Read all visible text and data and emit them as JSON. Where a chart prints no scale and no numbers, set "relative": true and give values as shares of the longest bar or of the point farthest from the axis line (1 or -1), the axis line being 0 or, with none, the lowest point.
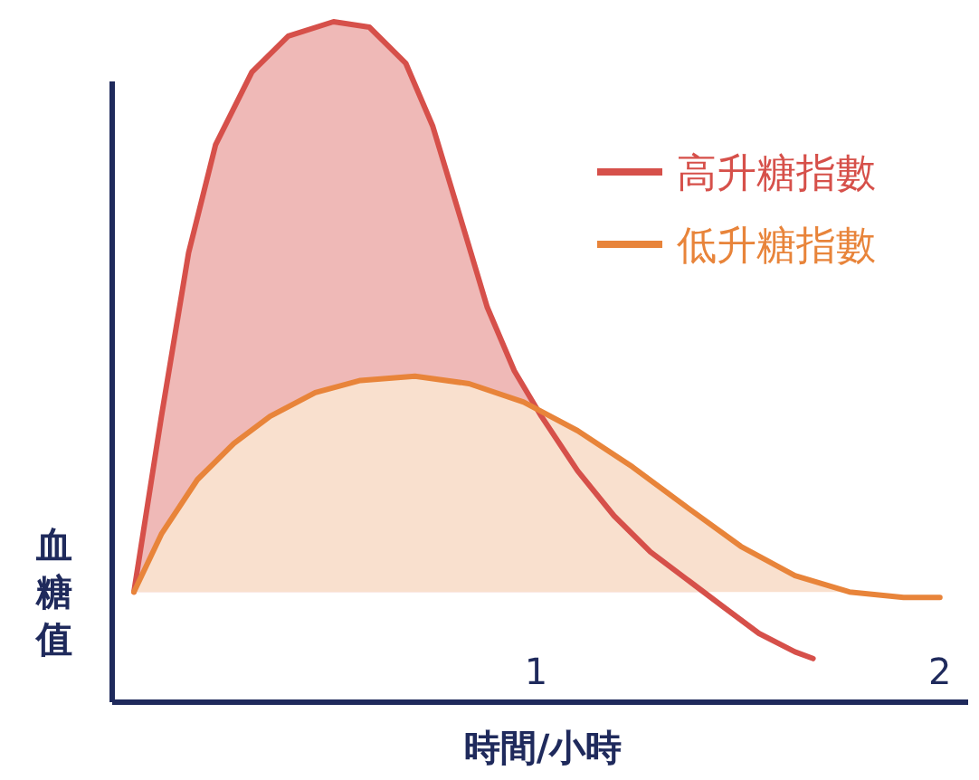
{
  "chart_data": {
    "type": "area",
    "relative": true,
    "xlabel": "時間/小時",
    "ylabel": "血糖值",
    "xlim": [
      -0.05,
      2.07
    ],
    "xticks": [
      1,
      2
    ],
    "tick_labels": "x",
    "legend": "top right",
    "series": [
      {
        "name": "高升糖指數",
        "color": "#d6504a",
        "x": [
          0.004,
          0.072,
          0.139,
          0.206,
          0.296,
          0.386,
          0.498,
          0.587,
          0.677,
          0.744,
          0.812,
          0.879,
          0.946,
          1.013,
          1.103,
          1.193,
          1.283,
          1.372,
          1.462,
          1.552,
          1.641,
          1.686
        ],
        "values": [
          0.162,
          0.42,
          0.66,
          0.819,
          0.926,
          0.979,
          1.0,
          0.992,
          0.939,
          0.846,
          0.713,
          0.58,
          0.487,
          0.42,
          0.34,
          0.274,
          0.221,
          0.181,
          0.141,
          0.101,
          0.074,
          0.064
        ]
      },
      {
        "name": "低升糖指數",
        "color": "#e8843a",
        "x": [
          0.004,
          0.072,
          0.161,
          0.251,
          0.341,
          0.453,
          0.565,
          0.7,
          0.834,
          0.969,
          1.103,
          1.238,
          1.372,
          1.507,
          1.641,
          1.776,
          1.91,
          2.0
        ],
        "values": [
          0.162,
          0.247,
          0.327,
          0.38,
          0.42,
          0.455,
          0.473,
          0.479,
          0.468,
          0.441,
          0.399,
          0.346,
          0.287,
          0.229,
          0.186,
          0.162,
          0.154,
          0.154
        ]
      }
    ]
  }
}
